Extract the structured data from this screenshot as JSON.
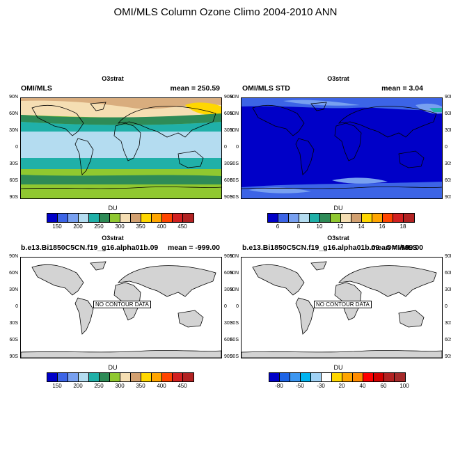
{
  "page_title": "OMI/MLS Column Ozone Climo 2004-2010 ANN",
  "lat_labels": [
    "90N",
    "60N",
    "30N",
    "0",
    "30S",
    "60S",
    "90S"
  ],
  "colors": {
    "ozone_scale": [
      "#0000c8",
      "#3c64e6",
      "#78a0f0",
      "#b4dcf0",
      "#20b0a8",
      "#2e8b57",
      "#90c830",
      "#f5deb3",
      "#d2a070",
      "#ffd700",
      "#ffa500",
      "#ff4500",
      "#d22020",
      "#b22222"
    ],
    "std_scale": [
      "#0000c8",
      "#3c64e6",
      "#78a0f0",
      "#b4dcf0",
      "#20b0a8",
      "#2e8b57",
      "#90c830",
      "#f5deb3",
      "#d2a070",
      "#ffd700",
      "#ffa500",
      "#ff4500",
      "#d22020",
      "#b22222"
    ],
    "diff_scale": [
      "#0000c8",
      "#1e64e6",
      "#3c96f0",
      "#00b4f0",
      "#a0d2f5",
      "#ffffff",
      "#ffd700",
      "#ffa500",
      "#ff8c00",
      "#ff0000",
      "#d20000",
      "#b22222",
      "#a52a2a"
    ],
    "land_gray": "#d3d3d3"
  },
  "panels": [
    {
      "var_title": "O3strat",
      "left_string": "OMI/MLS",
      "right_string": "mean = 250.59",
      "units": "DU",
      "colorbar_labels": [
        "150",
        "200",
        "250",
        "300",
        "350",
        "400",
        "450"
      ]
    },
    {
      "var_title": "O3strat",
      "left_string": "OMI/MLS STD",
      "right_string": "mean =   3.04",
      "units": "DU",
      "colorbar_labels": [
        "6",
        "8",
        "10",
        "12",
        "14",
        "16",
        "18"
      ]
    },
    {
      "var_title": "O3strat",
      "left_string": "b.e13.Bi1850C5CN.f19_g16.alpha01b.09",
      "right_string": "mean = -999.00",
      "units": "DU",
      "no_data_text": "NO CONTOUR DATA",
      "colorbar_labels": [
        "150",
        "200",
        "250",
        "300",
        "350",
        "400",
        "450"
      ]
    },
    {
      "var_title": "O3strat",
      "left_string": "b.e13.Bi1850C5CN.f19_g16.alpha01b.09 - OMI/MLS",
      "right_string": "mean = -999.00",
      "units": "DU",
      "no_data_text": "NO CONTOUR DATA",
      "colorbar_labels": [
        "-80",
        "-50",
        "-30",
        "20",
        "40",
        "60",
        "100"
      ]
    }
  ],
  "chart_data": [
    {
      "type": "heatmap",
      "title": "O3strat",
      "subtitle_left": "OMI/MLS",
      "subtitle_right": "mean = 250.59",
      "units": "DU",
      "colorbar_ticks": [
        150,
        200,
        250,
        300,
        350,
        400,
        450
      ],
      "ylim": [
        "90S",
        "90N"
      ]
    },
    {
      "type": "heatmap",
      "title": "O3strat",
      "subtitle_left": "OMI/MLS STD",
      "subtitle_right": "mean =   3.04",
      "units": "DU",
      "colorbar_ticks": [
        6,
        8,
        10,
        12,
        14,
        16,
        18
      ],
      "ylim": [
        "90S",
        "90N"
      ]
    },
    {
      "type": "heatmap",
      "title": "O3strat",
      "subtitle_left": "b.e13.Bi1850C5CN.f19_g16.alpha01b.09",
      "subtitle_right": "mean = -999.00",
      "units": "DU",
      "annotation": "NO CONTOUR DATA",
      "colorbar_ticks": [
        150,
        200,
        250,
        300,
        350,
        400,
        450
      ]
    },
    {
      "type": "heatmap",
      "title": "O3strat",
      "subtitle_left": "b.e13.Bi1850C5CN.f19_g16.alpha01b.09 - OMI/MLS",
      "subtitle_right": "mean = -999.00",
      "units": "DU",
      "annotation": "NO CONTOUR DATA",
      "colorbar_ticks": [
        -80,
        -50,
        -30,
        20,
        40,
        60,
        100
      ]
    }
  ]
}
